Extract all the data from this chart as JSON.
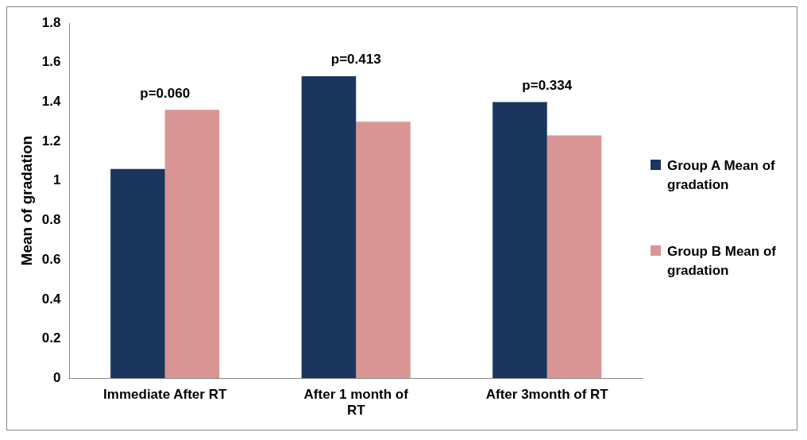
{
  "chart_data": {
    "type": "bar",
    "ylabel": "Mean of gradation",
    "categories": [
      "Immediate After RT",
      "After 1 month of RT",
      "After 3month of RT"
    ],
    "series": [
      {
        "name": "Group A Mean of gradation",
        "color": "#1b365d",
        "values": [
          1.06,
          1.53,
          1.4
        ]
      },
      {
        "name": "Group B Mean of gradation",
        "color": "#d99594",
        "values": [
          1.36,
          1.3,
          1.23
        ]
      }
    ],
    "ylim": [
      0,
      1.8
    ],
    "yticks": [
      0,
      0.2,
      0.4,
      0.6,
      0.8,
      1,
      1.2,
      1.4,
      1.6,
      1.8
    ],
    "grid": false,
    "legend": "right",
    "annotations": [
      "p=0.060",
      "p=0.413",
      "p=0.334"
    ]
  }
}
